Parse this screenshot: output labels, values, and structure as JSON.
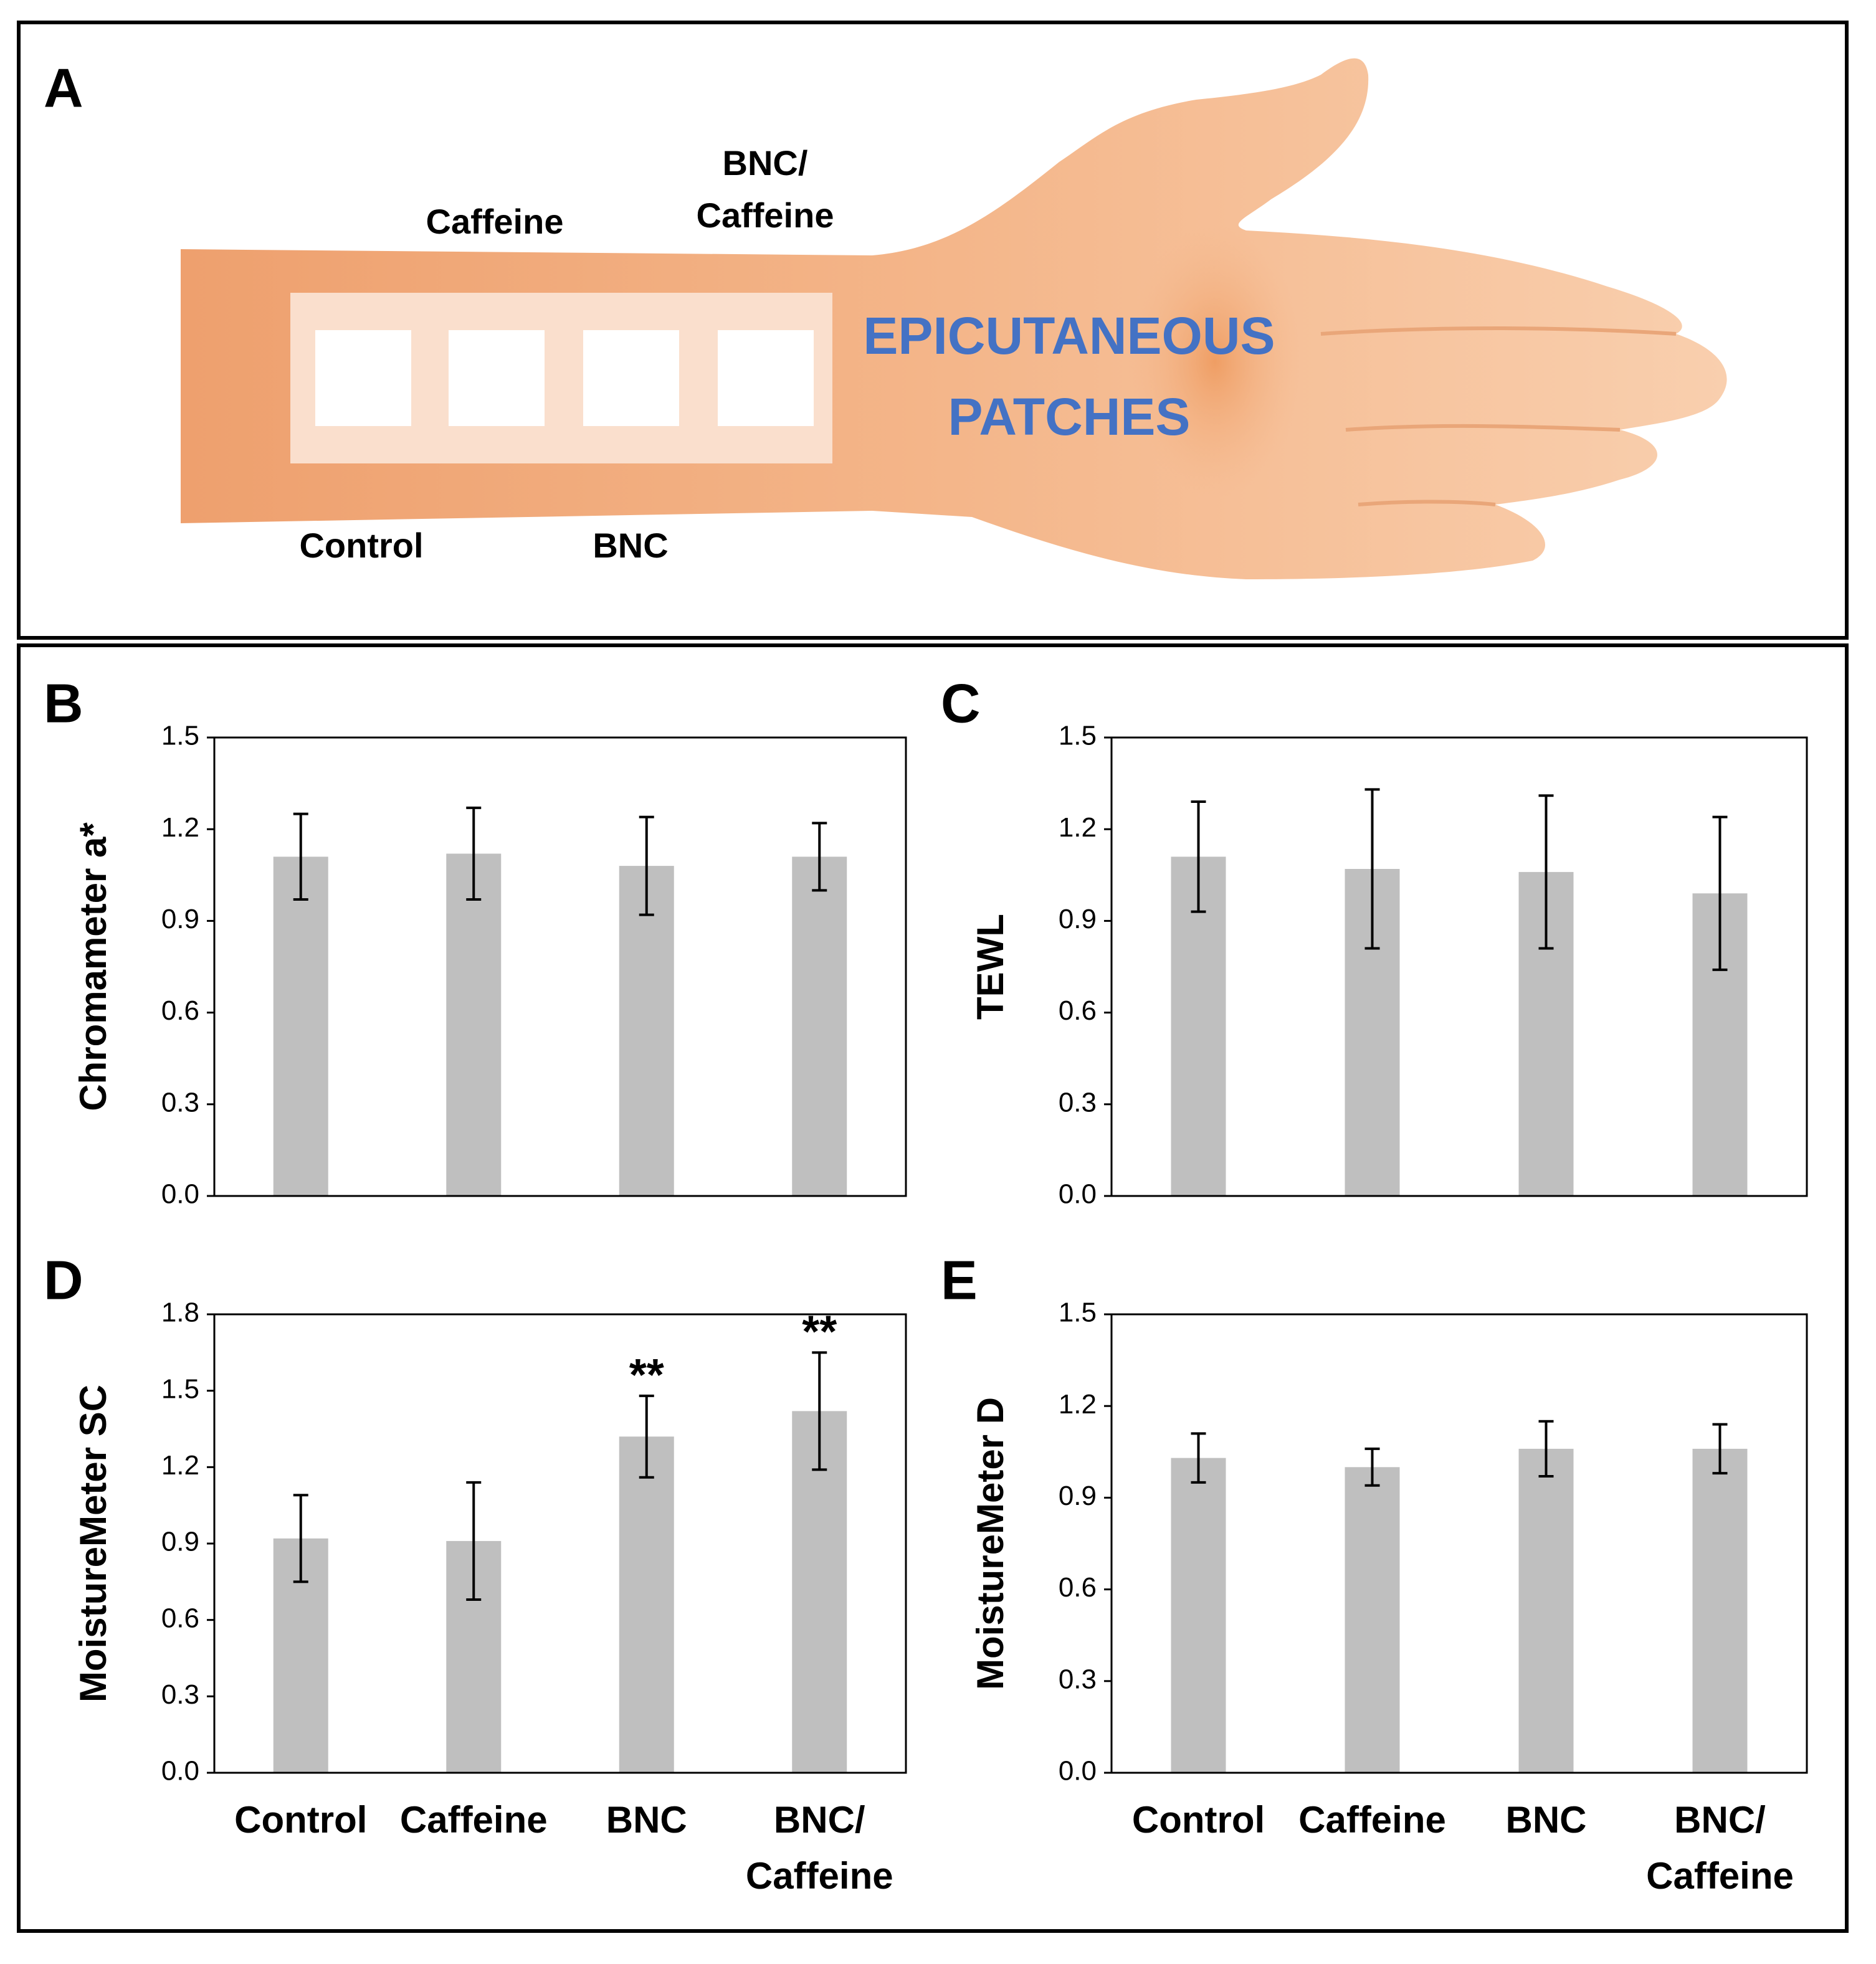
{
  "diagram": {
    "label": "A",
    "title": "EPICUTANEOUS\nPATCHES",
    "patch_labels": [
      "Control",
      "Caffeine",
      "BNC",
      "BNC/\nCaffeine"
    ]
  },
  "chart_data": [
    {
      "type": "bar",
      "label": "B",
      "ylabel": "Chromameter a*",
      "color": "#bfbfbf",
      "grid": false,
      "values": [
        1.11,
        1.12,
        1.08,
        1.11
      ],
      "errors": [
        0.14,
        0.15,
        0.16,
        0.11
      ],
      "ylim": [
        0,
        1.5
      ],
      "yticks": [
        {
          "value": 0,
          "label": "0.0"
        },
        0.3,
        0.6,
        0.9,
        1.2,
        1.5
      ]
    },
    {
      "type": "bar",
      "label": "C",
      "ylabel": "TEWL",
      "color": "#bfbfbf",
      "grid": false,
      "values": [
        1.11,
        1.07,
        1.06,
        0.99
      ],
      "errors": [
        0.18,
        0.26,
        0.25,
        0.25
      ],
      "ylim": [
        0,
        1.5
      ],
      "yticks": [
        {
          "value": 0,
          "label": "0.0"
        },
        0.3,
        0.6,
        0.9,
        1.2,
        1.5
      ]
    },
    {
      "type": "bar",
      "label": "D",
      "ylabel": "MoistureMeter SC",
      "color": "#bfbfbf",
      "grid": false,
      "categories": [
        "Control",
        "Caffeine",
        "BNC",
        "BNC/\nCaffeine"
      ],
      "values": [
        0.92,
        0.91,
        1.32,
        1.42
      ],
      "errors": [
        0.17,
        0.23,
        0.16,
        0.23
      ],
      "annotations": [
        null,
        null,
        "**",
        "**"
      ],
      "ylim": [
        0,
        1.8
      ],
      "yticks": [
        {
          "value": 0,
          "label": "0.0"
        },
        0.3,
        0.6,
        0.9,
        1.2,
        1.5,
        1.8
      ]
    },
    {
      "type": "bar",
      "label": "E",
      "ylabel": "MoistureMeter D",
      "color": "#bfbfbf",
      "grid": false,
      "categories": [
        "Control",
        "Caffeine",
        "BNC",
        "BNC/\nCaffeine"
      ],
      "values": [
        1.03,
        1.0,
        1.06,
        1.06
      ],
      "errors": [
        0.08,
        0.06,
        0.09,
        0.08
      ],
      "ylim": [
        0,
        1.5
      ],
      "yticks": [
        {
          "value": 0,
          "label": "0.0"
        },
        0.3,
        0.6,
        0.9,
        1.2,
        1.5
      ]
    }
  ]
}
